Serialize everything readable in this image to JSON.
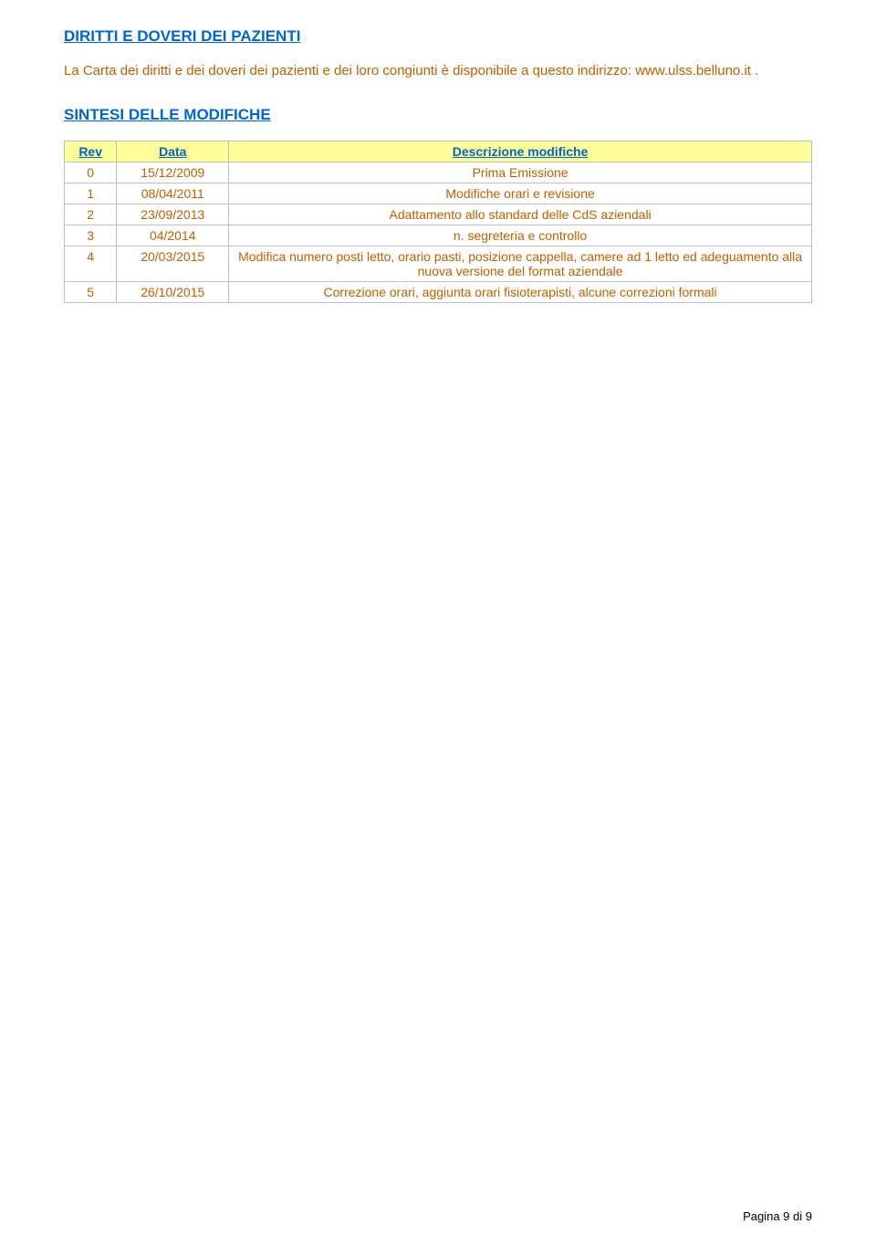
{
  "sections": {
    "rights": {
      "heading": "DIRITTI E DOVERI DEI PAZIENTI",
      "intro_pre": "La Carta dei diritti e dei doveri dei pazienti e dei loro congiunti è disponibile a questo indirizzo: ",
      "intro_link": "www.ulss.belluno.it",
      "intro_post": " ."
    },
    "modifiche": {
      "heading": "SINTESI DELLE MODIFICHE"
    }
  },
  "table": {
    "header_bg": "#ffff99",
    "header_color": "#0066cc",
    "border_color": "#bfbfbf",
    "cell_color": "#c06000",
    "columns": [
      "Rev",
      "Data",
      "Descrizione modifiche"
    ],
    "col_widths": [
      "7%",
      "15%",
      "78%"
    ],
    "rows": [
      {
        "rev": "0",
        "data": "15/12/2009",
        "desc": "Prima Emissione"
      },
      {
        "rev": "1",
        "data": "08/04/2011",
        "desc": "Modifiche orari e revisione"
      },
      {
        "rev": "2",
        "data": "23/09/2013",
        "desc": "Adattamento allo standard delle CdS aziendali"
      },
      {
        "rev": "3",
        "data": "04/2014",
        "desc": "n. segreteria e controllo"
      },
      {
        "rev": "4",
        "data": "20/03/2015",
        "desc": "Modifica numero posti letto, orario pasti, posizione cappella, camere ad 1 letto ed adeguamento alla nuova versione del format aziendale"
      },
      {
        "rev": "5",
        "data": "26/10/2015",
        "desc": "Correzione orari, aggiunta orari fisioterapisti, alcune correzioni formali"
      }
    ]
  },
  "footer": {
    "text": "Pagina 9 di 9"
  },
  "colors": {
    "link_blue": "#0066cc",
    "body_orange": "#c06000",
    "page_bg": "#ffffff"
  }
}
